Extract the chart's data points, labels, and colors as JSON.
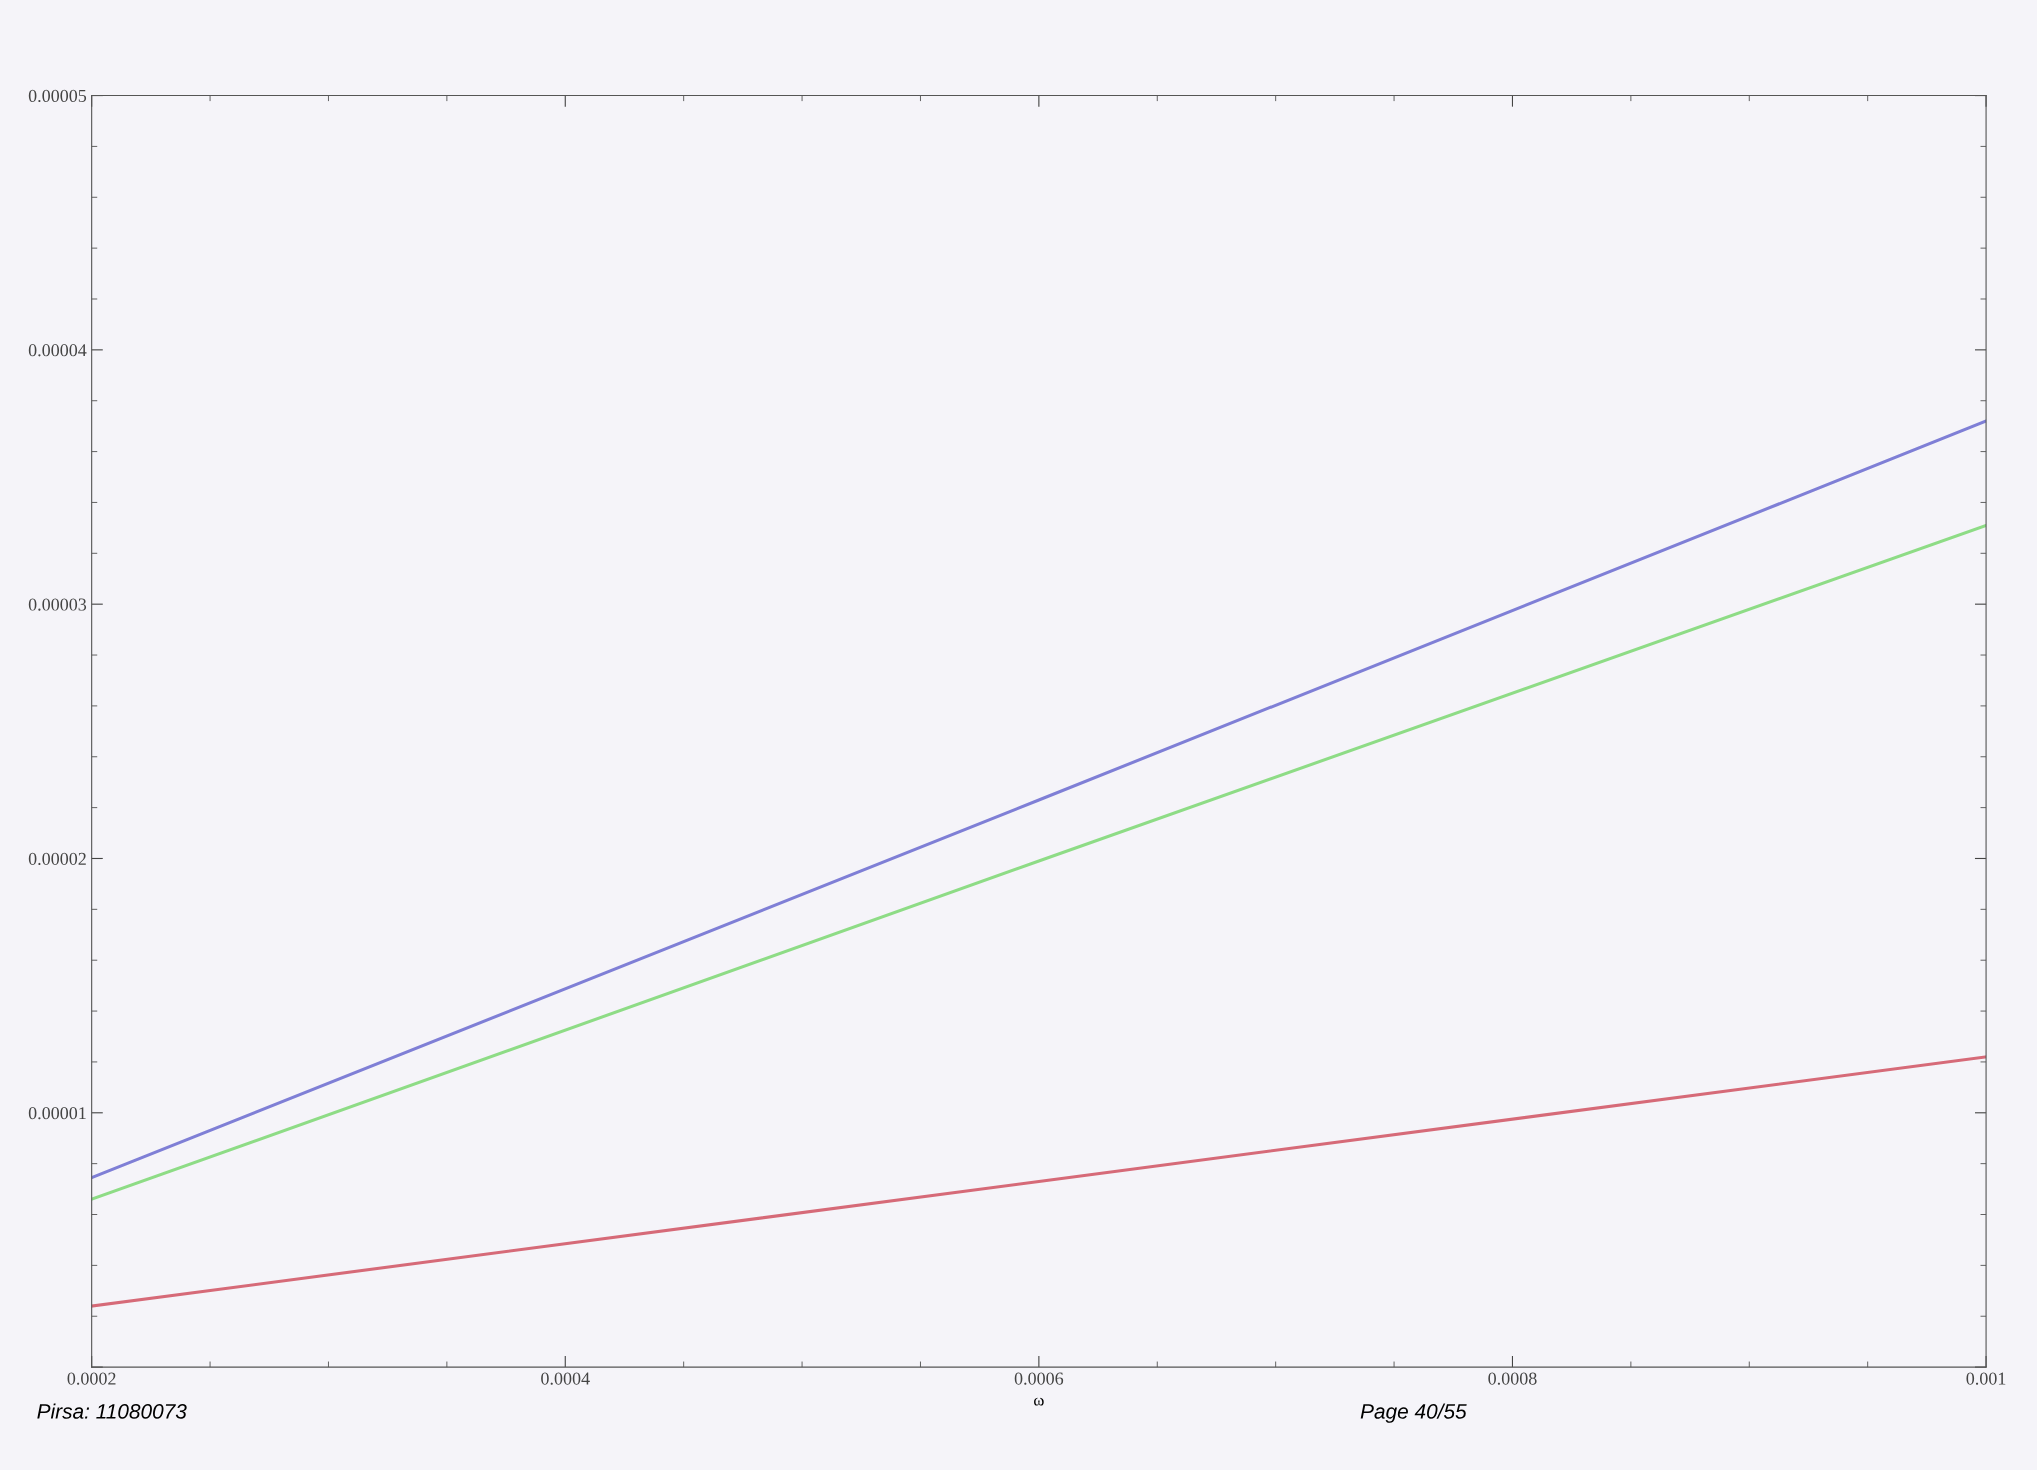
{
  "chart_data": {
    "type": "line",
    "xlabel": "ω",
    "x": [
      0.0002,
      0.0006,
      0.001
    ],
    "series": [
      {
        "color": "#7f7fd6",
        "values": [
          7.45e-06,
          2.23e-05,
          3.72e-05
        ]
      },
      {
        "color": "#8edc86",
        "values": [
          6.6e-06,
          1.99e-05,
          3.31e-05
        ]
      },
      {
        "color": "#d66a78",
        "values": [
          2.4e-06,
          7.3e-06,
          1.22e-05
        ]
      }
    ],
    "xlim": [
      0.0002,
      0.001
    ],
    "xticks": [
      0.0002,
      0.0004,
      0.0006,
      0.0008,
      0.001
    ],
    "ylim": [
      0,
      5e-05
    ],
    "yticks": [
      {
        "value": 0,
        "label": null
      },
      {
        "value": 1e-05,
        "label": "0.00001"
      },
      {
        "value": 2e-05,
        "label": "0.00002"
      },
      {
        "value": 3e-05,
        "label": "0.00003"
      },
      {
        "value": 4e-05,
        "label": "0.00004"
      },
      {
        "value": 5e-05,
        "label": "0.00005"
      }
    ],
    "grid": false,
    "legend": false,
    "marker": "none",
    "line_style": "solid",
    "annotations": [
      "Pirsa: 11080073",
      "Page 40/55"
    ]
  }
}
